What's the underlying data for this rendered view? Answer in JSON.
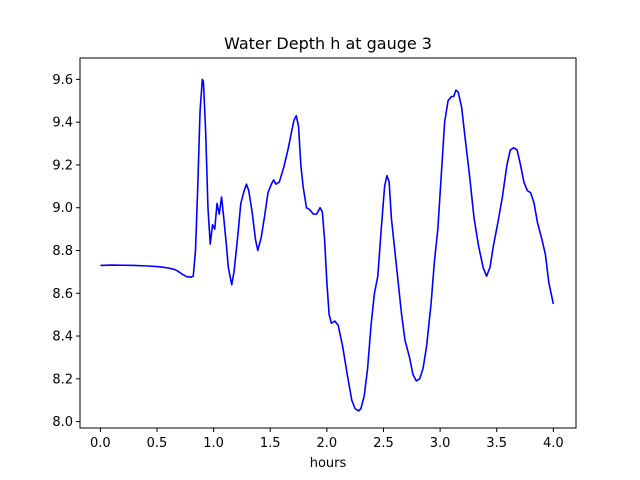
{
  "chart_data": {
    "type": "line",
    "title": "Water Depth h at gauge 3",
    "xlabel": "hours",
    "ylabel": "",
    "xlim": [
      -0.18,
      4.2
    ],
    "ylim": [
      7.97,
      9.7
    ],
    "grid": false,
    "x_ticks": [
      0.0,
      0.5,
      1.0,
      1.5,
      2.0,
      2.5,
      3.0,
      3.5,
      4.0
    ],
    "x_tick_labels": [
      "0.0",
      "0.5",
      "1.0",
      "1.5",
      "2.0",
      "2.5",
      "3.0",
      "3.5",
      "4.0"
    ],
    "y_ticks": [
      8.0,
      8.2,
      8.4,
      8.6,
      8.8,
      9.0,
      9.2,
      9.4,
      9.6
    ],
    "y_tick_labels": [
      "8.0",
      "8.2",
      "8.4",
      "8.6",
      "8.8",
      "9.0",
      "9.2",
      "9.4",
      "9.6"
    ],
    "series": [
      {
        "name": "",
        "color": "#0000ff",
        "points": [
          [
            0.0,
            8.73
          ],
          [
            0.1,
            8.732
          ],
          [
            0.2,
            8.731
          ],
          [
            0.3,
            8.73
          ],
          [
            0.4,
            8.728
          ],
          [
            0.5,
            8.725
          ],
          [
            0.55,
            8.722
          ],
          [
            0.6,
            8.718
          ],
          [
            0.65,
            8.712
          ],
          [
            0.68,
            8.705
          ],
          [
            0.72,
            8.69
          ],
          [
            0.76,
            8.678
          ],
          [
            0.8,
            8.675
          ],
          [
            0.82,
            8.68
          ],
          [
            0.84,
            8.8
          ],
          [
            0.86,
            9.1
          ],
          [
            0.88,
            9.45
          ],
          [
            0.9,
            9.6
          ],
          [
            0.91,
            9.59
          ],
          [
            0.93,
            9.35
          ],
          [
            0.95,
            9.0
          ],
          [
            0.97,
            8.83
          ],
          [
            0.99,
            8.92
          ],
          [
            1.01,
            8.9
          ],
          [
            1.03,
            9.02
          ],
          [
            1.05,
            8.97
          ],
          [
            1.07,
            9.05
          ],
          [
            1.09,
            8.95
          ],
          [
            1.11,
            8.84
          ],
          [
            1.13,
            8.72
          ],
          [
            1.16,
            8.64
          ],
          [
            1.18,
            8.7
          ],
          [
            1.21,
            8.85
          ],
          [
            1.24,
            9.02
          ],
          [
            1.27,
            9.08
          ],
          [
            1.29,
            9.11
          ],
          [
            1.31,
            9.08
          ],
          [
            1.34,
            8.98
          ],
          [
            1.37,
            8.85
          ],
          [
            1.39,
            8.8
          ],
          [
            1.42,
            8.86
          ],
          [
            1.45,
            8.96
          ],
          [
            1.48,
            9.07
          ],
          [
            1.51,
            9.11
          ],
          [
            1.53,
            9.13
          ],
          [
            1.55,
            9.11
          ],
          [
            1.58,
            9.12
          ],
          [
            1.62,
            9.19
          ],
          [
            1.66,
            9.28
          ],
          [
            1.69,
            9.36
          ],
          [
            1.71,
            9.41
          ],
          [
            1.73,
            9.43
          ],
          [
            1.75,
            9.38
          ],
          [
            1.77,
            9.2
          ],
          [
            1.79,
            9.1
          ],
          [
            1.82,
            9.0
          ],
          [
            1.85,
            8.99
          ],
          [
            1.88,
            8.97
          ],
          [
            1.91,
            8.97
          ],
          [
            1.94,
            9.0
          ],
          [
            1.96,
            8.98
          ],
          [
            1.98,
            8.85
          ],
          [
            2.0,
            8.65
          ],
          [
            2.02,
            8.5
          ],
          [
            2.04,
            8.46
          ],
          [
            2.07,
            8.47
          ],
          [
            2.1,
            8.45
          ],
          [
            2.14,
            8.35
          ],
          [
            2.18,
            8.22
          ],
          [
            2.22,
            8.1
          ],
          [
            2.25,
            8.06
          ],
          [
            2.28,
            8.05
          ],
          [
            2.3,
            8.06
          ],
          [
            2.33,
            8.12
          ],
          [
            2.36,
            8.25
          ],
          [
            2.39,
            8.45
          ],
          [
            2.42,
            8.6
          ],
          [
            2.45,
            8.68
          ],
          [
            2.48,
            8.9
          ],
          [
            2.51,
            9.1
          ],
          [
            2.53,
            9.15
          ],
          [
            2.55,
            9.12
          ],
          [
            2.57,
            8.95
          ],
          [
            2.6,
            8.8
          ],
          [
            2.63,
            8.65
          ],
          [
            2.66,
            8.5
          ],
          [
            2.69,
            8.38
          ],
          [
            2.73,
            8.3
          ],
          [
            2.76,
            8.22
          ],
          [
            2.79,
            8.19
          ],
          [
            2.82,
            8.2
          ],
          [
            2.85,
            8.25
          ],
          [
            2.88,
            8.35
          ],
          [
            2.92,
            8.55
          ],
          [
            2.95,
            8.75
          ],
          [
            2.98,
            8.9
          ],
          [
            3.01,
            9.15
          ],
          [
            3.04,
            9.4
          ],
          [
            3.07,
            9.5
          ],
          [
            3.1,
            9.52
          ],
          [
            3.12,
            9.52
          ],
          [
            3.14,
            9.55
          ],
          [
            3.16,
            9.54
          ],
          [
            3.19,
            9.47
          ],
          [
            3.22,
            9.33
          ],
          [
            3.26,
            9.15
          ],
          [
            3.3,
            8.95
          ],
          [
            3.34,
            8.82
          ],
          [
            3.38,
            8.72
          ],
          [
            3.41,
            8.68
          ],
          [
            3.44,
            8.72
          ],
          [
            3.47,
            8.82
          ],
          [
            3.51,
            8.93
          ],
          [
            3.55,
            9.05
          ],
          [
            3.59,
            9.2
          ],
          [
            3.62,
            9.27
          ],
          [
            3.65,
            9.28
          ],
          [
            3.68,
            9.27
          ],
          [
            3.71,
            9.2
          ],
          [
            3.74,
            9.12
          ],
          [
            3.77,
            9.08
          ],
          [
            3.8,
            9.07
          ],
          [
            3.83,
            9.02
          ],
          [
            3.86,
            8.93
          ],
          [
            3.9,
            8.85
          ],
          [
            3.93,
            8.78
          ],
          [
            3.96,
            8.65
          ],
          [
            4.0,
            8.55
          ]
        ]
      }
    ]
  }
}
